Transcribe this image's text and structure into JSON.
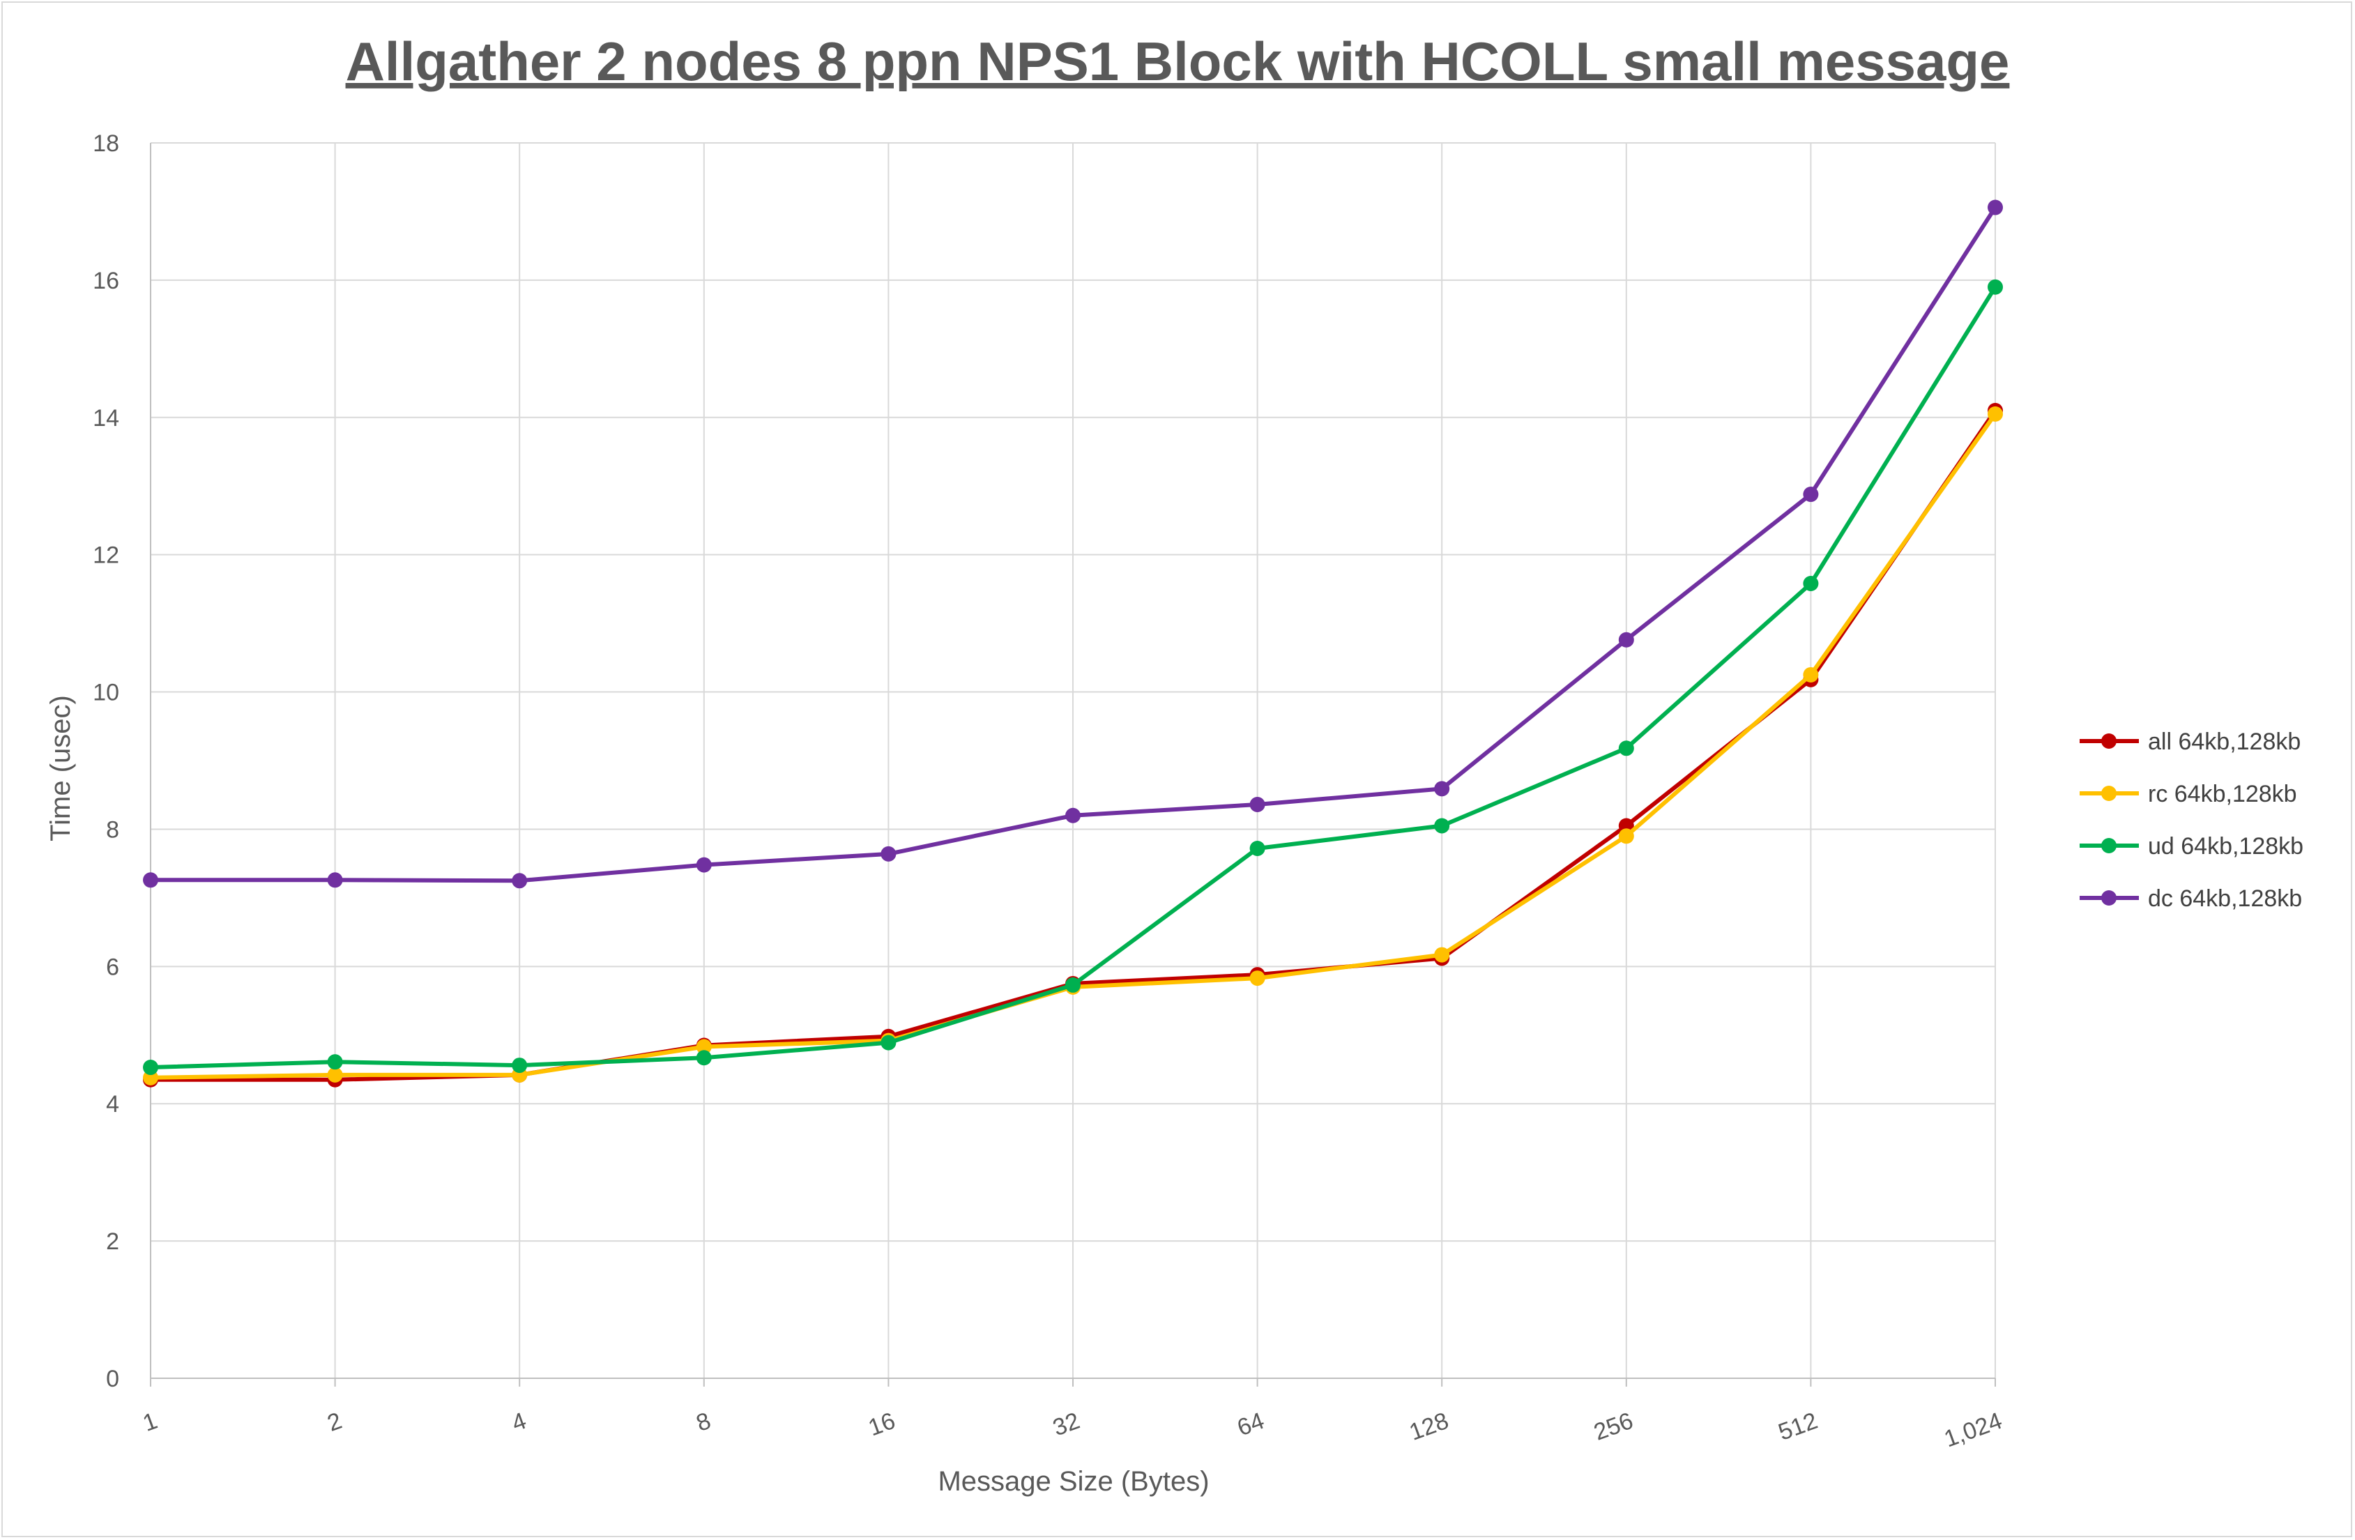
{
  "chart_data": {
    "type": "line",
    "title": "Allgather 2 nodes 8 ppn NPS1 Block with HCOLL small message",
    "xlabel": "Message Size (Bytes)",
    "ylabel": "Time (usec)",
    "categories": [
      "1",
      "2",
      "4",
      "8",
      "16",
      "32",
      "64",
      "128",
      "256",
      "512",
      "1,024"
    ],
    "ylim": [
      0,
      18
    ],
    "yticks": [
      "0",
      "2",
      "4",
      "6",
      "8",
      "10",
      "12",
      "14",
      "16",
      "18"
    ],
    "grid": true,
    "legend_position": "right",
    "series": [
      {
        "name": "all 64kb,128kb",
        "color": "#c00000",
        "values": [
          4.35,
          4.35,
          4.42,
          4.85,
          4.98,
          5.75,
          5.88,
          6.12,
          8.05,
          10.18,
          14.1
        ]
      },
      {
        "name": "rc 64kb,128kb",
        "color": "#ffc000",
        "values": [
          4.38,
          4.42,
          4.42,
          4.83,
          4.92,
          5.7,
          5.83,
          6.17,
          7.9,
          10.25,
          14.05
        ]
      },
      {
        "name": "ud 64kb,128kb",
        "color": "#00b050",
        "values": [
          4.53,
          4.61,
          4.56,
          4.67,
          4.89,
          5.73,
          7.72,
          8.05,
          9.18,
          11.58,
          15.9
        ]
      },
      {
        "name": "dc 64kb,128kb",
        "color": "#7030a0",
        "values": [
          7.26,
          7.26,
          7.25,
          7.48,
          7.64,
          8.2,
          8.36,
          8.59,
          10.76,
          12.88,
          17.06
        ]
      }
    ]
  }
}
